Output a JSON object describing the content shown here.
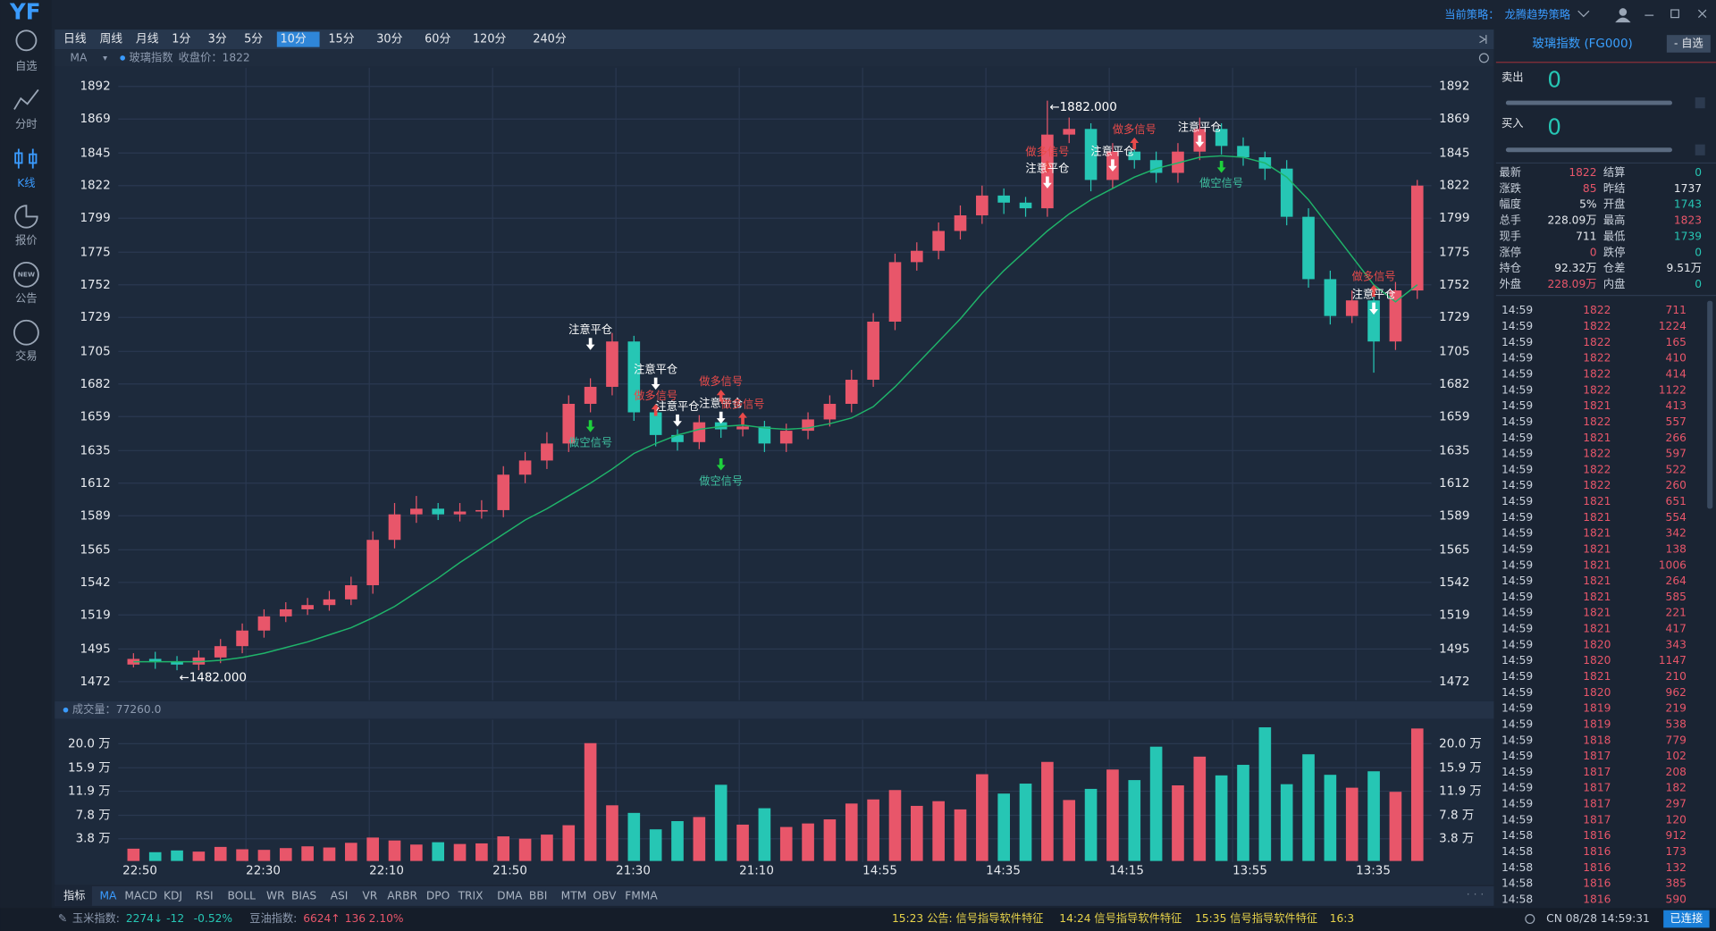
{
  "app": {
    "logo": "YF",
    "nav": [
      "自选",
      "分时",
      "K线",
      "报价",
      "公告",
      "交易"
    ],
    "active_nav": "K线",
    "strategy_label": "当前策略：",
    "strategy": "龙腾趋势策略"
  },
  "periods": [
    "日线",
    "周线",
    "月线",
    "1分",
    "3分",
    "5分",
    "10分",
    "15分",
    "30分",
    "60分",
    "120分",
    "240分"
  ],
  "active_period": "10分",
  "chart_header": {
    "ma": "MA",
    "symbol": "玻璃指数",
    "close_label": "收盘价：1822"
  },
  "chart_data": [
    {
      "type": "candlestick",
      "up_color": "#e8566a",
      "down_color": "#26c6b4",
      "open": [
        1484,
        1488,
        1486,
        1484,
        1489,
        1497,
        1508,
        1518,
        1523,
        1526,
        1530,
        1540,
        1572,
        1590,
        1594,
        1590,
        1592,
        1593,
        1618,
        1628,
        1640,
        1668,
        1680,
        1712,
        1662,
        1646,
        1641,
        1655,
        1650,
        1652,
        1640,
        1649,
        1657,
        1668,
        1685,
        1726,
        1768,
        1776,
        1790,
        1801,
        1815,
        1810,
        1806,
        1858,
        1862,
        1826,
        1846,
        1840,
        1831,
        1846,
        1862,
        1850,
        1842,
        1834,
        1800,
        1756,
        1730,
        1741,
        1712,
        1748
      ],
      "high": [
        1492,
        1493,
        1490,
        1494,
        1502,
        1513,
        1523,
        1528,
        1531,
        1536,
        1546,
        1578,
        1598,
        1603,
        1598,
        1598,
        1600,
        1624,
        1634,
        1648,
        1674,
        1686,
        1718,
        1716,
        1668,
        1650,
        1660,
        1660,
        1658,
        1656,
        1654,
        1662,
        1674,
        1692,
        1732,
        1774,
        1782,
        1796,
        1808,
        1822,
        1820,
        1814,
        1882,
        1870,
        1866,
        1852,
        1850,
        1846,
        1852,
        1870,
        1866,
        1856,
        1846,
        1840,
        1806,
        1762,
        1748,
        1746,
        1754,
        1826
      ],
      "low": [
        1482,
        1481,
        1480,
        1480,
        1485,
        1492,
        1503,
        1514,
        1519,
        1522,
        1526,
        1534,
        1566,
        1584,
        1586,
        1585,
        1587,
        1588,
        1612,
        1622,
        1634,
        1662,
        1674,
        1656,
        1638,
        1635,
        1636,
        1644,
        1645,
        1634,
        1634,
        1643,
        1652,
        1662,
        1680,
        1720,
        1762,
        1770,
        1784,
        1795,
        1802,
        1800,
        1800,
        1852,
        1818,
        1820,
        1834,
        1824,
        1824,
        1840,
        1844,
        1836,
        1826,
        1794,
        1750,
        1724,
        1725,
        1690,
        1706,
        1742
      ],
      "close": [
        1488,
        1486,
        1484,
        1489,
        1497,
        1508,
        1518,
        1523,
        1526,
        1530,
        1540,
        1572,
        1590,
        1594,
        1590,
        1592,
        1593,
        1618,
        1628,
        1640,
        1668,
        1680,
        1712,
        1662,
        1646,
        1641,
        1655,
        1650,
        1652,
        1640,
        1649,
        1657,
        1668,
        1685,
        1726,
        1768,
        1776,
        1790,
        1801,
        1815,
        1810,
        1806,
        1858,
        1862,
        1826,
        1846,
        1840,
        1831,
        1846,
        1862,
        1850,
        1842,
        1834,
        1800,
        1756,
        1730,
        1741,
        1712,
        1748,
        1822
      ],
      "ma": {
        "color": "#1fb46a",
        "values": [
          1486,
          1486,
          1486,
          1486,
          1487,
          1489,
          1492,
          1496,
          1500,
          1505,
          1510,
          1517,
          1525,
          1535,
          1545,
          1556,
          1566,
          1576,
          1586,
          1594,
          1603,
          1612,
          1622,
          1633,
          1640,
          1646,
          1650,
          1652,
          1653,
          1651,
          1650,
          1651,
          1654,
          1658,
          1666,
          1680,
          1696,
          1712,
          1728,
          1746,
          1762,
          1776,
          1790,
          1802,
          1812,
          1820,
          1828,
          1834,
          1838,
          1842,
          1843,
          1842,
          1838,
          1828,
          1812,
          1792,
          1772,
          1752,
          1740,
          1752
        ]
      },
      "max_label": "←1882.000",
      "min_label": "←1482.000",
      "ylim": [
        1472,
        1892
      ],
      "yticks": [
        1892,
        1869,
        1845,
        1822,
        1799,
        1775,
        1752,
        1729,
        1705,
        1682,
        1659,
        1635,
        1612,
        1589,
        1565,
        1542,
        1519,
        1495,
        1472
      ],
      "grid": true,
      "x_labels": [
        "22:50",
        "22:30",
        "22:10",
        "21:50",
        "21:30",
        "21:10",
        "14:55",
        "14:35",
        "14:15",
        "13:55",
        "13:35"
      ],
      "annotations": [
        {
          "label": "注意平仓",
          "index": 21,
          "price": 1706,
          "direction": "down",
          "text_pos": "above",
          "color": "#ffffff",
          "text_color": "#ffffff"
        },
        {
          "label": "做空信号",
          "index": 21,
          "price": 1648,
          "direction": "down",
          "text_pos": "below",
          "color": "#1ecf3c",
          "text_color": "#3fbf9f"
        },
        {
          "label": "注意平仓",
          "index": 24,
          "price": 1678,
          "direction": "down",
          "text_pos": "above",
          "color": "#ffffff",
          "text_color": "#ffffff"
        },
        {
          "label": "做多信号",
          "index": 24,
          "price": 1668,
          "direction": "up",
          "text_pos": "above",
          "color": "#e84a4a",
          "text_color": "#e84a4a"
        },
        {
          "label": "注意平仓",
          "index": 25,
          "price": 1652,
          "direction": "down",
          "text_pos": "above",
          "color": "#ffffff",
          "text_color": "#ffffff"
        },
        {
          "label": "做多信号",
          "index": 27,
          "price": 1678,
          "direction": "up",
          "text_pos": "above",
          "color": "#e84a4a",
          "text_color": "#e84a4a"
        },
        {
          "label": "做空信号",
          "index": 27,
          "price": 1621,
          "direction": "down",
          "text_pos": "below",
          "color": "#1ecf3c",
          "text_color": "#3fbf9f"
        },
        {
          "label": "注意平仓",
          "index": 27,
          "price": 1654,
          "direction": "down",
          "text_pos": "above",
          "color": "#ffffff",
          "text_color": "#ffffff"
        },
        {
          "label": "做多信号",
          "index": 28,
          "price": 1662,
          "direction": "up",
          "text_pos": "above",
          "color": "#e84a4a",
          "text_color": "#e84a4a"
        },
        {
          "label": "做多信号",
          "index": 42,
          "price": 1840,
          "direction": "up",
          "text_pos": "above",
          "color": "#e84a4a",
          "text_color": "#e84a4a"
        },
        {
          "label": "注意平仓",
          "index": 42,
          "price": 1820,
          "direction": "down",
          "text_pos": "above",
          "color": "#ffffff",
          "text_color": "#ffffff"
        },
        {
          "label": "注意平仓",
          "index": 45,
          "price": 1832,
          "direction": "down",
          "text_pos": "above",
          "color": "#ffffff",
          "text_color": "#ffffff"
        },
        {
          "label": "做多信号",
          "index": 46,
          "price": 1856,
          "direction": "up",
          "text_pos": "above",
          "color": "#e84a4a",
          "text_color": "#e84a4a"
        },
        {
          "label": "注意平仓",
          "index": 49,
          "price": 1849,
          "direction": "down",
          "text_pos": "above",
          "color": "#ffffff",
          "text_color": "#ffffff"
        },
        {
          "label": "做空信号",
          "index": 50,
          "price": 1831,
          "direction": "down",
          "text_pos": "below",
          "color": "#1ecf3c",
          "text_color": "#3fbf9f"
        },
        {
          "label": "做多信号",
          "index": 57,
          "price": 1752,
          "direction": "up",
          "text_pos": "above",
          "color": "#e84a4a",
          "text_color": "#e84a4a"
        },
        {
          "label": "注意平仓",
          "index": 57,
          "price": 1731,
          "direction": "down",
          "text_pos": "above",
          "color": "#ffffff",
          "text_color": "#ffffff"
        }
      ]
    },
    {
      "type": "bar",
      "title": "成交量：77260.0",
      "values": [
        2.1,
        1.5,
        1.8,
        1.6,
        2.4,
        2.0,
        1.9,
        2.2,
        2.5,
        2.3,
        3.1,
        4.0,
        3.5,
        2.8,
        3.2,
        2.9,
        3.0,
        4.2,
        3.8,
        4.5,
        6.1,
        20.1,
        9.5,
        8.2,
        5.4,
        6.8,
        7.5,
        13.0,
        6.2,
        9.0,
        5.8,
        6.4,
        7.1,
        9.8,
        10.5,
        12.1,
        9.4,
        10.2,
        8.8,
        14.8,
        11.5,
        13.2,
        16.9,
        10.4,
        12.3,
        15.6,
        13.8,
        19.5,
        12.9,
        17.8,
        14.6,
        16.4,
        22.8,
        13.1,
        18.2,
        14.7,
        12.5,
        15.3,
        11.8,
        22.6
      ],
      "ylim": [
        0,
        23.7
      ],
      "yticks": [
        {
          "value": 20,
          "label": "20.0 万"
        },
        {
          "value": 15.9,
          "label": "15.9 万"
        },
        {
          "value": 11.9,
          "label": "11.9 万"
        },
        {
          "value": 7.8,
          "label": "7.8 万"
        },
        {
          "value": 3.8,
          "label": "3.8 万"
        }
      ]
    }
  ],
  "indicators": {
    "label": "指标",
    "items": [
      "MA",
      "MACD",
      "KDJ",
      "RSI",
      "BOLL",
      "WR",
      "BIAS",
      "ASI",
      "VR",
      "ARBR",
      "DPO",
      "TRIX",
      "DMA",
      "BBI",
      "MTM",
      "OBV",
      "FMMA"
    ],
    "active": "MA"
  },
  "status": {
    "quotes": [
      {
        "name": "玉米指数:",
        "price": "2274↓",
        "change": "-12",
        "pct": "-0.52%",
        "color": "#26c6b4"
      },
      {
        "name": "豆油指数:",
        "price": "6624↑",
        "change": "136",
        "pct": "2.10%",
        "color": "#e8566a"
      }
    ],
    "ticker": [
      "15:23 公告: 信号指导软件特征",
      "14:24 信号指导软件特征",
      "15:35 信号指导软件特征",
      "16:3"
    ],
    "clock": "CN 08/28 14:59:31",
    "connection": "已连接"
  },
  "panel": {
    "title": "玻璃指数 (FG000)",
    "button": "- 自选",
    "sell": {
      "label": "卖出",
      "value": 0
    },
    "buy": {
      "label": "买入",
      "value": 0
    },
    "stats": [
      [
        {
          "label": "最新",
          "value": "1822",
          "color": "#e8566a"
        },
        {
          "label": "结算",
          "value": "0",
          "color": "#26c6b4"
        }
      ],
      [
        {
          "label": "涨跌",
          "value": "85",
          "color": "#e8566a"
        },
        {
          "label": "昨结",
          "value": "1737",
          "color": "#e6e9ee"
        }
      ],
      [
        {
          "label": "幅度",
          "value": "5%",
          "color": "#e6e9ee"
        },
        {
          "label": "开盘",
          "value": "1743",
          "color": "#26c6b4"
        }
      ],
      [
        {
          "label": "总手",
          "value": "228.09万",
          "color": "#e6e9ee"
        },
        {
          "label": "最高",
          "value": "1823",
          "color": "#e8566a"
        }
      ],
      [
        {
          "label": "现手",
          "value": "711",
          "color": "#e6e9ee"
        },
        {
          "label": "最低",
          "value": "1739",
          "color": "#26c6b4"
        }
      ],
      [
        {
          "label": "涨停",
          "value": "0",
          "color": "#e8566a"
        },
        {
          "label": "跌停",
          "value": "0",
          "color": "#26c6b4"
        }
      ],
      [
        {
          "label": "持仓",
          "value": "92.32万",
          "color": "#e6e9ee"
        },
        {
          "label": "仓差",
          "value": "9.51万",
          "color": "#e6e9ee"
        }
      ],
      [
        {
          "label": "外盘",
          "value": "228.09万",
          "color": "#e8566a"
        },
        {
          "label": "内盘",
          "value": "0",
          "color": "#26c6b4"
        }
      ]
    ],
    "ticks": [
      [
        "14:59",
        1822,
        711
      ],
      [
        "14:59",
        1822,
        1224
      ],
      [
        "14:59",
        1822,
        165
      ],
      [
        "14:59",
        1822,
        410
      ],
      [
        "14:59",
        1822,
        414
      ],
      [
        "14:59",
        1822,
        1122
      ],
      [
        "14:59",
        1821,
        413
      ],
      [
        "14:59",
        1822,
        557
      ],
      [
        "14:59",
        1821,
        266
      ],
      [
        "14:59",
        1822,
        597
      ],
      [
        "14:59",
        1822,
        522
      ],
      [
        "14:59",
        1822,
        260
      ],
      [
        "14:59",
        1821,
        651
      ],
      [
        "14:59",
        1821,
        554
      ],
      [
        "14:59",
        1821,
        342
      ],
      [
        "14:59",
        1821,
        138
      ],
      [
        "14:59",
        1821,
        1006
      ],
      [
        "14:59",
        1821,
        264
      ],
      [
        "14:59",
        1821,
        585
      ],
      [
        "14:59",
        1821,
        221
      ],
      [
        "14:59",
        1821,
        417
      ],
      [
        "14:59",
        1820,
        343
      ],
      [
        "14:59",
        1820,
        1147
      ],
      [
        "14:59",
        1821,
        210
      ],
      [
        "14:59",
        1820,
        962
      ],
      [
        "14:59",
        1819,
        219
      ],
      [
        "14:59",
        1819,
        538
      ],
      [
        "14:59",
        1818,
        779
      ],
      [
        "14:59",
        1817,
        102
      ],
      [
        "14:59",
        1817,
        208
      ],
      [
        "14:59",
        1817,
        182
      ],
      [
        "14:59",
        1817,
        297
      ],
      [
        "14:59",
        1817,
        120
      ],
      [
        "14:58",
        1816,
        912
      ],
      [
        "14:58",
        1816,
        173
      ],
      [
        "14:58",
        1816,
        132
      ],
      [
        "14:58",
        1816,
        385
      ],
      [
        "14:58",
        1816,
        590
      ]
    ]
  }
}
